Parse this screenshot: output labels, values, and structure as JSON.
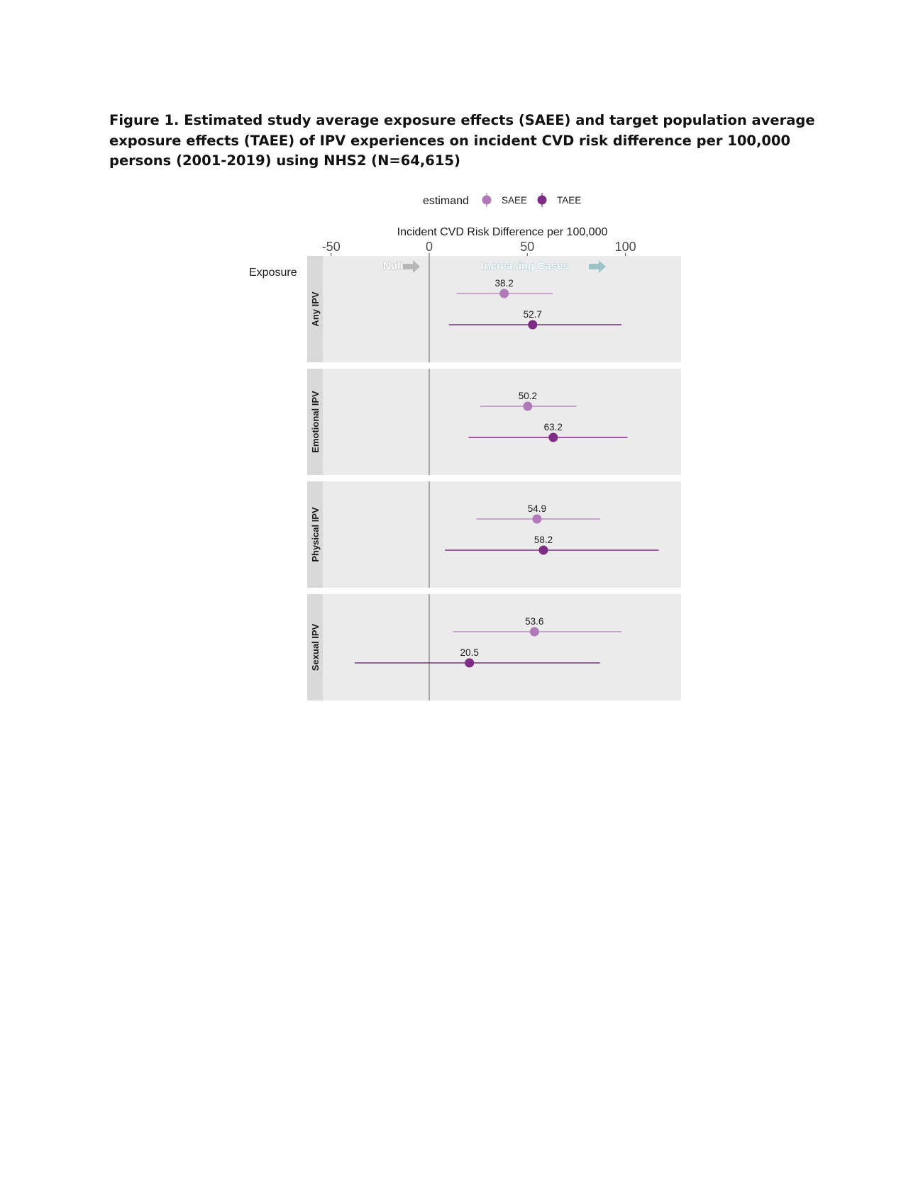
{
  "caption": "Figure 1. Estimated study average exposure effects (SAEE) and target population average exposure effects (TAEE) of IPV experiences on incident CVD risk difference per 100,000 persons (2001-2019) using NHS2 (N=64,615)",
  "chart_data": {
    "type": "scatter",
    "subtype": "forest plot with confidence intervals, faceted by exposure",
    "xlabel": "Incident CVD Risk Difference per 100,000",
    "ylabel": "Exposure",
    "xlim": [
      -54,
      128
    ],
    "xticks": [
      "-50",
      "0",
      "50",
      "100"
    ],
    "xtick_values": [
      -50,
      0,
      50,
      100
    ],
    "legend": {
      "title": "estimand",
      "position": "top",
      "entries": [
        {
          "label": "SAEE",
          "color": "#b07ab8"
        },
        {
          "label": "TAEE",
          "color": "#7e2d84"
        }
      ]
    },
    "annotations": [
      {
        "text": "Null",
        "color": "#b8b8b8"
      },
      {
        "text": "Increasing Cases",
        "color": "#9ec3c6"
      }
    ],
    "reference_line_x": 0,
    "grid": false,
    "panel_background": "#ebebeb",
    "facets": [
      {
        "label": "Any IPV",
        "points": [
          {
            "estimand": "SAEE",
            "estimate": 38.2,
            "label": "38.2",
            "lower": 14,
            "upper": 63
          },
          {
            "estimand": "TAEE",
            "estimate": 52.7,
            "label": "52.7",
            "lower": 10,
            "upper": 98
          }
        ]
      },
      {
        "label": "Emotional IPV",
        "points": [
          {
            "estimand": "SAEE",
            "estimate": 50.2,
            "label": "50.2",
            "lower": 26,
            "upper": 75
          },
          {
            "estimand": "TAEE",
            "estimate": 63.2,
            "label": "63.2",
            "lower": 20,
            "upper": 101
          }
        ]
      },
      {
        "label": "Physical IPV",
        "points": [
          {
            "estimand": "SAEE",
            "estimate": 54.9,
            "label": "54.9",
            "lower": 24,
            "upper": 87
          },
          {
            "estimand": "TAEE",
            "estimate": 58.2,
            "label": "58.2",
            "lower": 8,
            "upper": 117
          }
        ]
      },
      {
        "label": "Sexual IPV",
        "points": [
          {
            "estimand": "SAEE",
            "estimate": 53.6,
            "label": "53.6",
            "lower": 12,
            "upper": 98
          },
          {
            "estimand": "TAEE",
            "estimate": 20.5,
            "label": "20.5",
            "lower": -38,
            "upper": 87
          }
        ]
      }
    ]
  }
}
